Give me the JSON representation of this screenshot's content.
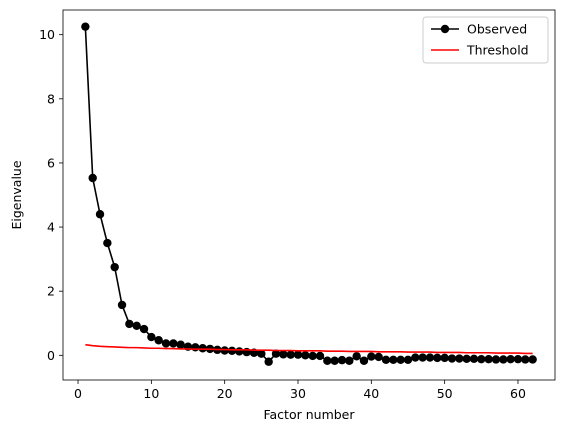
{
  "chart_data": {
    "type": "line",
    "title": "",
    "xlabel": "Factor number",
    "ylabel": "Eigenvalue",
    "xlim": [
      -2.05,
      65.05
    ],
    "ylim": [
      -0.77,
      10.77
    ],
    "xticks": [
      0,
      10,
      20,
      30,
      40,
      50,
      60
    ],
    "yticks": [
      0,
      2,
      4,
      6,
      8,
      10
    ],
    "grid": false,
    "legend_position": "top-right",
    "series": [
      {
        "name": "Observed",
        "color": "#000000",
        "marker": "circle",
        "x": [
          1,
          2,
          3,
          4,
          5,
          6,
          7,
          8,
          9,
          10,
          11,
          12,
          13,
          14,
          15,
          16,
          17,
          18,
          19,
          20,
          21,
          22,
          23,
          24,
          25,
          26,
          27,
          28,
          29,
          30,
          31,
          32,
          33,
          34,
          35,
          36,
          37,
          38,
          39,
          40,
          41,
          42,
          43,
          44,
          45,
          46,
          47,
          48,
          49,
          50,
          51,
          52,
          53,
          54,
          55,
          56,
          57,
          58,
          59,
          60,
          61,
          62
        ],
        "values": [
          10.25,
          5.53,
          4.4,
          3.5,
          2.75,
          1.57,
          0.98,
          0.92,
          0.82,
          0.57,
          0.47,
          0.37,
          0.37,
          0.33,
          0.27,
          0.25,
          0.22,
          0.2,
          0.17,
          0.15,
          0.14,
          0.12,
          0.1,
          0.08,
          0.05,
          -0.2,
          0.05,
          0.03,
          0.02,
          0.02,
          0.0,
          -0.02,
          -0.02,
          -0.17,
          -0.17,
          -0.15,
          -0.17,
          -0.03,
          -0.17,
          -0.04,
          -0.05,
          -0.14,
          -0.14,
          -0.14,
          -0.14,
          -0.07,
          -0.07,
          -0.07,
          -0.08,
          -0.08,
          -0.1,
          -0.1,
          -0.11,
          -0.11,
          -0.12,
          -0.12,
          -0.13,
          -0.13,
          -0.12,
          -0.12,
          -0.13,
          -0.13
        ]
      },
      {
        "name": "Threshold",
        "color": "#ff0000",
        "marker": "none",
        "x": [
          1,
          2,
          3,
          4,
          5,
          6,
          7,
          8,
          9,
          10,
          11,
          12,
          13,
          14,
          15,
          16,
          17,
          18,
          19,
          20,
          21,
          22,
          23,
          24,
          25,
          26,
          27,
          28,
          29,
          30,
          31,
          32,
          33,
          34,
          35,
          36,
          37,
          38,
          39,
          40,
          41,
          42,
          43,
          44,
          45,
          46,
          47,
          48,
          49,
          50,
          51,
          52,
          53,
          54,
          55,
          56,
          57,
          58,
          59,
          60,
          61,
          62
        ],
        "values": [
          0.33,
          0.3,
          0.28,
          0.27,
          0.26,
          0.25,
          0.24,
          0.24,
          0.23,
          0.22,
          0.22,
          0.21,
          0.21,
          0.2,
          0.2,
          0.19,
          0.19,
          0.19,
          0.18,
          0.18,
          0.17,
          0.17,
          0.17,
          0.16,
          0.16,
          0.16,
          0.15,
          0.15,
          0.15,
          0.14,
          0.14,
          0.14,
          0.14,
          0.13,
          0.13,
          0.13,
          0.12,
          0.12,
          0.12,
          0.12,
          0.11,
          0.11,
          0.11,
          0.11,
          0.1,
          0.1,
          0.1,
          0.1,
          0.09,
          0.09,
          0.09,
          0.09,
          0.08,
          0.08,
          0.08,
          0.08,
          0.07,
          0.07,
          0.07,
          0.07,
          0.06,
          0.06
        ]
      }
    ]
  }
}
